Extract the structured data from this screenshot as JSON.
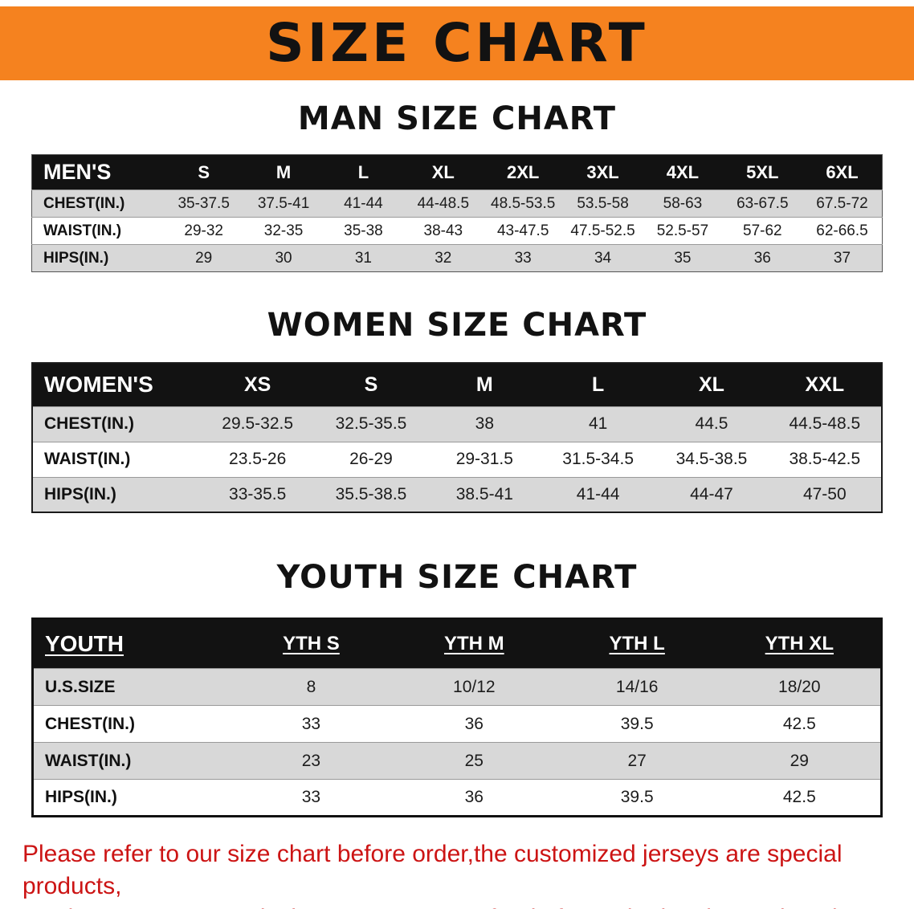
{
  "banner": {
    "title": "SIZE CHART"
  },
  "sections": [
    {
      "heading": "MAN SIZE CHART",
      "header": [
        "MEN'S",
        "S",
        "M",
        "L",
        "XL",
        "2XL",
        "3XL",
        "4XL",
        "5XL",
        "6XL"
      ],
      "rows": [
        [
          "CHEST(IN.)",
          "35-37.5",
          "37.5-41",
          "41-44",
          "44-48.5",
          "48.5-53.5",
          "53.5-58",
          "58-63",
          "63-67.5",
          "67.5-72"
        ],
        [
          "WAIST(IN.)",
          "29-32",
          "32-35",
          "35-38",
          "38-43",
          "43-47.5",
          "47.5-52.5",
          "52.5-57",
          "57-62",
          "62-66.5"
        ],
        [
          "HIPS(IN.)",
          "29",
          "30",
          "31",
          "32",
          "33",
          "34",
          "35",
          "36",
          "37"
        ]
      ]
    },
    {
      "heading": "WOMEN SIZE CHART",
      "header": [
        "WOMEN'S",
        "XS",
        "S",
        "M",
        "L",
        "XL",
        "XXL"
      ],
      "rows": [
        [
          "CHEST(IN.)",
          "29.5-32.5",
          "32.5-35.5",
          "38",
          "41",
          "44.5",
          "44.5-48.5"
        ],
        [
          "WAIST(IN.)",
          "23.5-26",
          "26-29",
          "29-31.5",
          "31.5-34.5",
          "34.5-38.5",
          "38.5-42.5"
        ],
        [
          "HIPS(IN.)",
          "33-35.5",
          "35.5-38.5",
          "38.5-41",
          "41-44",
          "44-47",
          "47-50"
        ]
      ]
    },
    {
      "heading": "YOUTH SIZE CHART",
      "header": [
        "YOUTH",
        "YTH S",
        "YTH M",
        "YTH L",
        "YTH XL"
      ],
      "rows": [
        [
          "U.S.SIZE",
          "8",
          "10/12",
          "14/16",
          "18/20"
        ],
        [
          "CHEST(IN.)",
          "33",
          "36",
          "39.5",
          "42.5"
        ],
        [
          "WAIST(IN.)",
          "23",
          "25",
          "27",
          "29"
        ],
        [
          "HIPS(IN.)",
          "33",
          "36",
          "39.5",
          "42.5"
        ]
      ]
    }
  ],
  "disclaimer": {
    "line1": "Please refer to our size chart before order,the customized jerseys are special products,",
    "line2": "we don't accept cancel, change, teturn or refund after order has been placed!"
  },
  "colors": {
    "banner_bg": "#f5821f",
    "table_header_bg": "#121212",
    "row_alt_bg": "#d8d8d8",
    "disclaimer_text": "#cc1414"
  }
}
